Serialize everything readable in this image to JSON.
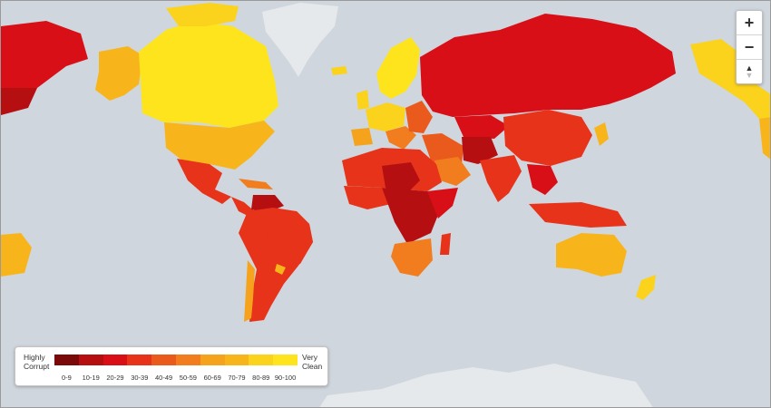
{
  "map": {
    "colors": {
      "ocean": "#cfd6dd",
      "polar": "#e5e9ec",
      "bin_0_9": "#7a0a0a",
      "bin_10_19": "#b50f12",
      "bin_20_29": "#d80f16",
      "bin_30_39": "#e6331a",
      "bin_40_49": "#eb5a1d",
      "bin_50_59": "#f17d1e",
      "bin_60_69": "#f5a31d",
      "bin_70_79": "#f8b51b",
      "bin_80_89": "#fbd21c",
      "bin_90_100": "#fde41c"
    }
  },
  "zoom": {
    "in_label": "+",
    "out_label": "−",
    "north_up": "▲",
    "north_down": "▼"
  },
  "legend": {
    "left_line1": "Highly",
    "left_line2": "Corrupt",
    "right_line1": "Very",
    "right_line2": "Clean",
    "bins": [
      {
        "label": "0-9",
        "color": "#7a0a0a"
      },
      {
        "label": "10-19",
        "color": "#b50f12"
      },
      {
        "label": "20-29",
        "color": "#d80f16"
      },
      {
        "label": "30-39",
        "color": "#e6331a"
      },
      {
        "label": "40-49",
        "color": "#eb5a1d"
      },
      {
        "label": "50-59",
        "color": "#f17d1e"
      },
      {
        "label": "60-69",
        "color": "#f5a31d"
      },
      {
        "label": "70-79",
        "color": "#f8b51b"
      },
      {
        "label": "80-89",
        "color": "#fbd21c"
      },
      {
        "label": "90-100",
        "color": "#fde41c"
      }
    ]
  }
}
